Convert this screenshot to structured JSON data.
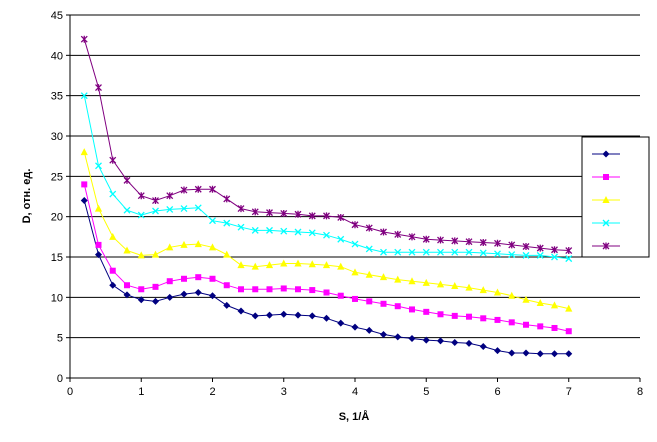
{
  "chart_data": {
    "type": "line",
    "title": "",
    "xlabel": "S, 1/Å",
    "ylabel": "D, отн. ед.",
    "xlim": [
      0,
      8
    ],
    "ylim": [
      0,
      45
    ],
    "x_ticks": [
      0,
      1,
      2,
      3,
      4,
      5,
      6,
      7,
      8
    ],
    "y_ticks": [
      0,
      5,
      10,
      15,
      20,
      25,
      30,
      35,
      40,
      45
    ],
    "grid": "horizontal",
    "legend_position": "right",
    "x": [
      0.2,
      0.4,
      0.6,
      0.8,
      1.0,
      1.2,
      1.4,
      1.6,
      1.8,
      2.0,
      2.2,
      2.4,
      2.6,
      2.8,
      3.0,
      3.2,
      3.4,
      3.6,
      3.8,
      4.0,
      4.2,
      4.4,
      4.6,
      4.8,
      5.0,
      5.2,
      5.4,
      5.6,
      5.8,
      6.0,
      6.2,
      6.4,
      6.6,
      6.8,
      7.0
    ],
    "series": [
      {
        "color": "#000080",
        "marker": "diamond",
        "values": [
          22.0,
          15.3,
          11.5,
          10.3,
          9.7,
          9.5,
          10.0,
          10.4,
          10.6,
          10.2,
          9.0,
          8.3,
          7.7,
          7.8,
          7.9,
          7.8,
          7.7,
          7.4,
          6.8,
          6.3,
          5.9,
          5.4,
          5.1,
          4.9,
          4.7,
          4.6,
          4.4,
          4.3,
          3.9,
          3.4,
          3.1,
          3.1,
          3.0,
          3.0,
          3.0
        ]
      },
      {
        "color": "#FF00FF",
        "marker": "square",
        "values": [
          24.0,
          16.5,
          13.3,
          11.5,
          11.0,
          11.3,
          12.0,
          12.3,
          12.5,
          12.3,
          11.5,
          11.0,
          11.0,
          11.0,
          11.1,
          11.0,
          10.9,
          10.6,
          10.2,
          9.8,
          9.5,
          9.2,
          8.9,
          8.5,
          8.2,
          7.9,
          7.7,
          7.6,
          7.4,
          7.2,
          6.9,
          6.6,
          6.4,
          6.2,
          5.8
        ]
      },
      {
        "color": "#FFFF00",
        "marker": "triangle",
        "values": [
          28.0,
          21.0,
          17.5,
          15.8,
          15.2,
          15.3,
          16.2,
          16.5,
          16.6,
          16.2,
          15.3,
          14.0,
          13.8,
          14.0,
          14.2,
          14.2,
          14.1,
          14.0,
          13.8,
          13.1,
          12.8,
          12.5,
          12.2,
          12.0,
          11.8,
          11.6,
          11.4,
          11.2,
          10.9,
          10.6,
          10.2,
          9.7,
          9.3,
          9.0,
          8.6
        ]
      },
      {
        "color": "#00FFFF",
        "marker": "x",
        "values": [
          35.0,
          26.3,
          22.8,
          20.8,
          20.2,
          20.7,
          20.9,
          21.0,
          21.1,
          19.5,
          19.2,
          18.7,
          18.3,
          18.3,
          18.2,
          18.1,
          18.0,
          17.7,
          17.2,
          16.6,
          16.0,
          15.6,
          15.6,
          15.6,
          15.6,
          15.6,
          15.6,
          15.6,
          15.5,
          15.4,
          15.3,
          15.2,
          15.2,
          15.0,
          14.8
        ]
      },
      {
        "color": "#800080",
        "marker": "star",
        "values": [
          42.0,
          36.0,
          27.0,
          24.5,
          22.6,
          22.0,
          22.6,
          23.3,
          23.4,
          23.4,
          22.2,
          21.0,
          20.6,
          20.5,
          20.4,
          20.3,
          20.1,
          20.1,
          19.9,
          19.0,
          18.6,
          18.1,
          17.8,
          17.5,
          17.2,
          17.1,
          17.0,
          16.9,
          16.8,
          16.7,
          16.5,
          16.3,
          16.1,
          15.9,
          15.8
        ]
      }
    ]
  }
}
